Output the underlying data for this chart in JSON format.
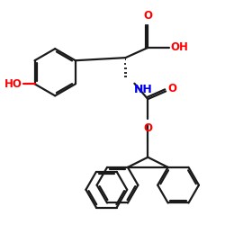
{
  "bg_color": "#ffffff",
  "bond_color": "#1a1a1a",
  "o_color": "#ff0000",
  "n_color": "#0000ee",
  "lw": 1.6,
  "fs": 8.5,
  "fig_size": [
    2.5,
    2.5
  ],
  "dpi": 100,
  "xlim": [
    0,
    10
  ],
  "ylim": [
    0,
    10
  ]
}
